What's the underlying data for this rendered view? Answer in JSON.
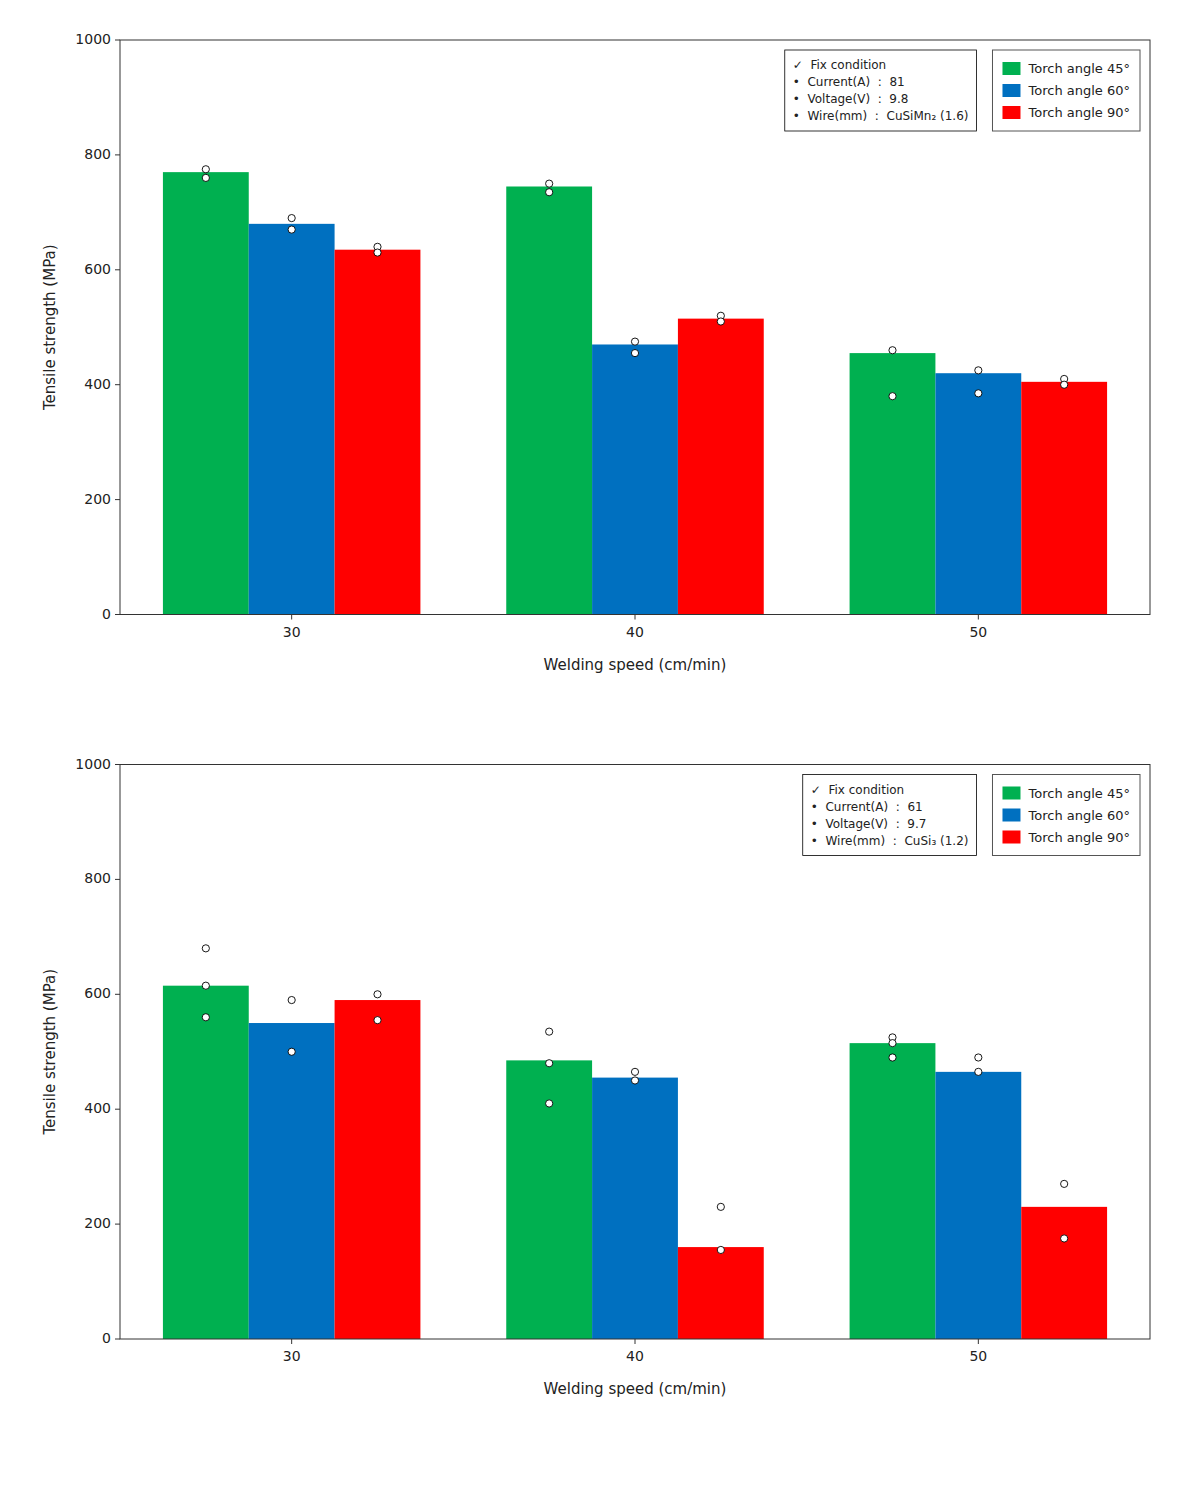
{
  "chart_data": [
    {
      "type": "bar",
      "categories": [
        "30",
        "40",
        "50"
      ],
      "series": [
        {
          "name": "Torch angle 45°",
          "color": "#00b050",
          "values": [
            770,
            745,
            455
          ],
          "dots": [
            [
              775,
              760
            ],
            [
              750,
              735
            ],
            [
              460,
              380
            ]
          ]
        },
        {
          "name": "Torch angle 60°",
          "color": "#0070c0",
          "values": [
            680,
            470,
            420
          ],
          "dots": [
            [
              690,
              670
            ],
            [
              475,
              455
            ],
            [
              425,
              385
            ]
          ]
        },
        {
          "name": "Torch angle 90°",
          "color": "#ff0000",
          "values": [
            635,
            515,
            405
          ],
          "dots": [
            [
              640,
              630
            ],
            [
              520,
              510
            ],
            [
              410,
              400
            ]
          ]
        }
      ],
      "annotations": [
        "✓  Fix condition",
        "•  Current(A)  :  81",
        "•  Voltage(V)  :  9.8",
        "•  Wire(mm)  :  CuSiMn₂ (1.6)"
      ],
      "xlabel": "Welding speed (cm/min)",
      "ylabel": "Tensile strength (MPa)",
      "ylim": [
        0,
        1000
      ],
      "yticks": [
        0,
        200,
        400,
        600,
        800,
        1000
      ],
      "legend": "upper right",
      "grid": false
    },
    {
      "type": "bar",
      "categories": [
        "30",
        "40",
        "50"
      ],
      "series": [
        {
          "name": "Torch angle 45°",
          "color": "#00b050",
          "values": [
            615,
            485,
            515
          ],
          "dots": [
            [
              680,
              615,
              560
            ],
            [
              535,
              480,
              410
            ],
            [
              525,
              515,
              490
            ]
          ]
        },
        {
          "name": "Torch angle 60°",
          "color": "#0070c0",
          "values": [
            550,
            455,
            465
          ],
          "dots": [
            [
              590,
              500
            ],
            [
              465,
              450
            ],
            [
              490,
              465
            ]
          ]
        },
        {
          "name": "Torch angle 90°",
          "color": "#ff0000",
          "values": [
            590,
            160,
            230
          ],
          "dots": [
            [
              600,
              555
            ],
            [
              230,
              155
            ],
            [
              270,
              175
            ]
          ]
        }
      ],
      "annotations": [
        "✓  Fix condition",
        "•  Current(A)  :  61",
        "•  Voltage(V)  :  9.7",
        "•  Wire(mm)  :  CuSi₃ (1.2)"
      ],
      "xlabel": "Welding speed (cm/min)",
      "ylabel": "Tensile strength (MPa)",
      "ylim": [
        0,
        1000
      ],
      "yticks": [
        0,
        200,
        400,
        600,
        800,
        1000
      ],
      "legend": "upper right",
      "grid": false
    }
  ]
}
